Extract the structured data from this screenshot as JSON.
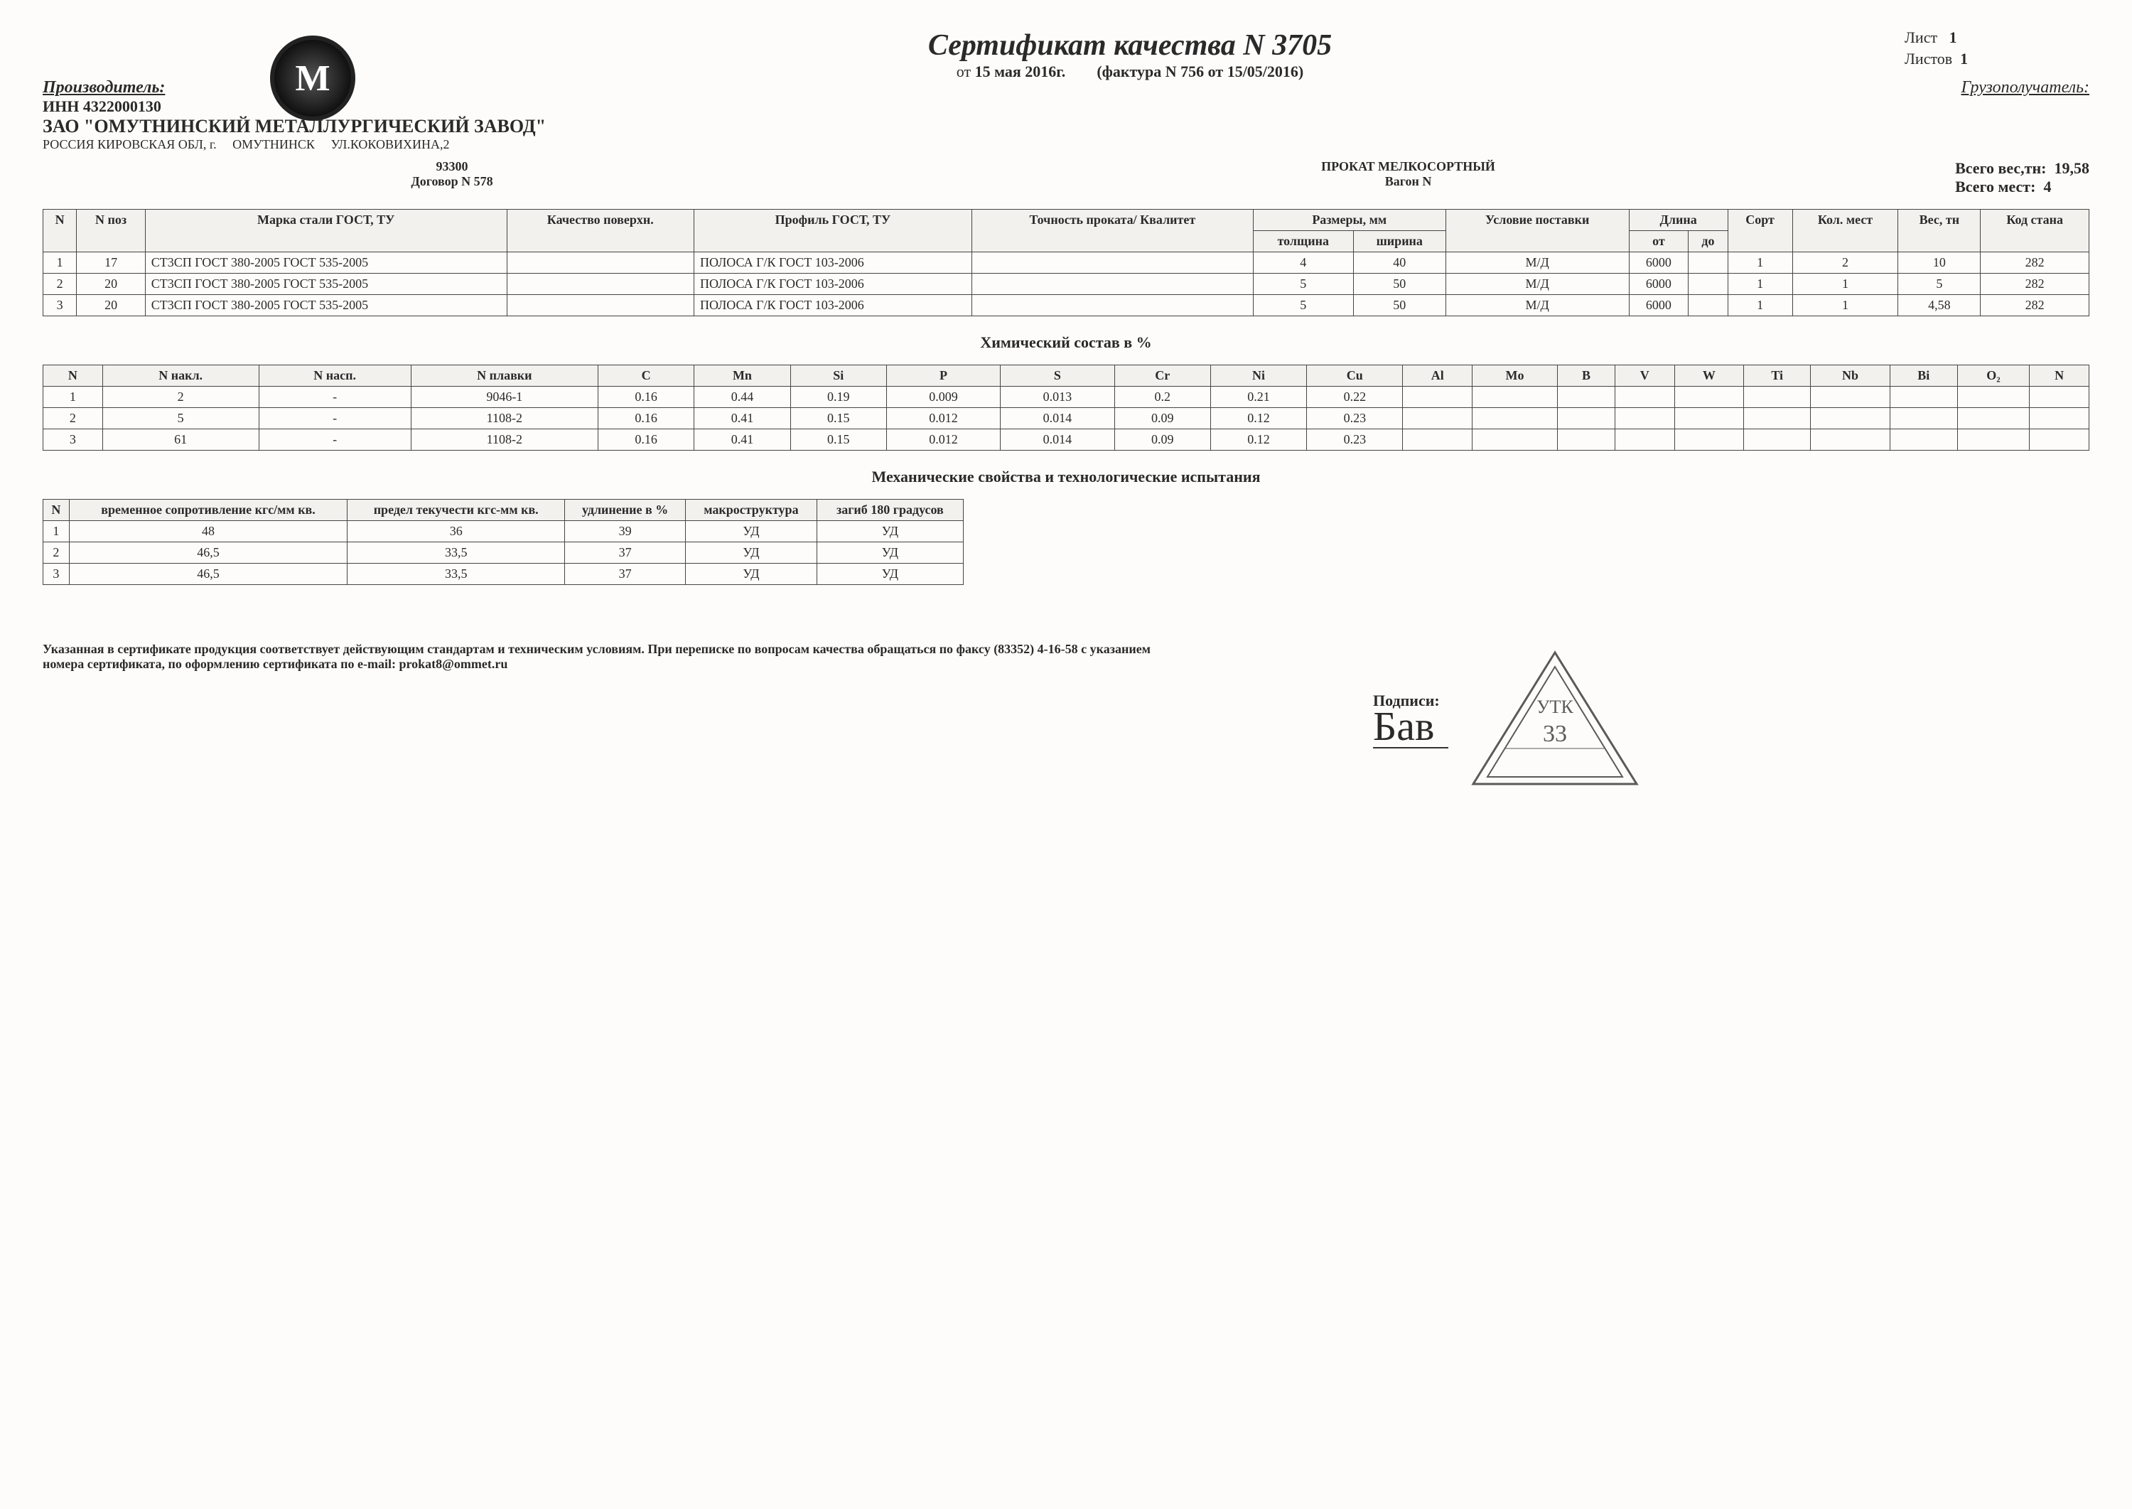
{
  "header": {
    "main_title": "Сертификат качества N 3705",
    "date_prefix": "от",
    "date": "15 мая 2016г.",
    "invoice": "(фактура N 756 от 15/05/2016)",
    "page_label": "Лист",
    "page_num": "1",
    "pages_label": "Листов",
    "pages_total": "1"
  },
  "producer": {
    "label": "Производитель:",
    "inn": "ИНН 4322000130",
    "company": "ЗАО \"ОМУТНИНСКИЙ МЕТАЛЛУРГИЧЕСКИЙ ЗАВОД\"",
    "address1": "РОССИЯ КИРОВСКАЯ ОБЛ, г.",
    "address2": "ОМУТНИНСК",
    "address3": "УЛ.КОКОВИХИНА,2",
    "zip": "93300",
    "logo_letter": "M"
  },
  "recipient_label": "Грузополучатель:",
  "contract": {
    "dogovor": "Договор N 578",
    "product": "ПРОКАТ МЕЛКОСОРТНЫЙ",
    "wagon": "Вагон N"
  },
  "totals": {
    "weight_label": "Всего вес,тн:",
    "weight": "19,58",
    "places_label": "Всего мест:",
    "places": "4"
  },
  "table1": {
    "headers": {
      "n": "N",
      "npoz": "N поз",
      "mark": "Марка стали ГОСТ, ТУ",
      "quality": "Качество поверхн.",
      "profile": "Профиль ГОСТ, ТУ",
      "accuracy": "Точность проката/ Квалитет",
      "dims": "Размеры, мм",
      "thick": "толщина",
      "width": "ширина",
      "delivery": "Условие поставки",
      "length": "Длина",
      "from": "от",
      "to": "до",
      "sort": "Сорт",
      "places": "Кол. мест",
      "weight": "Вес, тн",
      "mill": "Код стана"
    },
    "rows": [
      {
        "n": "1",
        "npoz": "17",
        "mark": "СТ3СП ГОСТ 380-2005 ГОСТ 535-2005",
        "quality": "",
        "profile": "ПОЛОСА Г/К ГОСТ 103-2006",
        "accuracy": "",
        "thick": "4",
        "width": "40",
        "delivery": "М/Д",
        "from": "6000",
        "to": "",
        "sort": "1",
        "places": "2",
        "weight": "10",
        "mill": "282"
      },
      {
        "n": "2",
        "npoz": "20",
        "mark": "СТ3СП ГОСТ 380-2005 ГОСТ 535-2005",
        "quality": "",
        "profile": "ПОЛОСА Г/К ГОСТ 103-2006",
        "accuracy": "",
        "thick": "5",
        "width": "50",
        "delivery": "М/Д",
        "from": "6000",
        "to": "",
        "sort": "1",
        "places": "1",
        "weight": "5",
        "mill": "282"
      },
      {
        "n": "3",
        "npoz": "20",
        "mark": "СТ3СП ГОСТ 380-2005 ГОСТ 535-2005",
        "quality": "",
        "profile": "ПОЛОСА Г/К ГОСТ 103-2006",
        "accuracy": "",
        "thick": "5",
        "width": "50",
        "delivery": "М/Д",
        "from": "6000",
        "to": "",
        "sort": "1",
        "places": "1",
        "weight": "4,58",
        "mill": "282"
      }
    ]
  },
  "table2": {
    "title": "Химический состав в %",
    "headers": [
      "N",
      "N накл.",
      "N насп.",
      "N плавки",
      "C",
      "Mn",
      "Si",
      "P",
      "S",
      "Cr",
      "Ni",
      "Cu",
      "Al",
      "Mo",
      "B",
      "V",
      "W",
      "Ti",
      "Nb",
      "Bi",
      "O₂",
      "N"
    ],
    "rows": [
      [
        "1",
        "2",
        "-",
        "9046-1",
        "0.16",
        "0.44",
        "0.19",
        "0.009",
        "0.013",
        "0.2",
        "0.21",
        "0.22",
        "",
        "",
        "",
        "",
        "",
        "",
        "",
        "",
        "",
        ""
      ],
      [
        "2",
        "5",
        "-",
        "1108-2",
        "0.16",
        "0.41",
        "0.15",
        "0.012",
        "0.014",
        "0.09",
        "0.12",
        "0.23",
        "",
        "",
        "",
        "",
        "",
        "",
        "",
        "",
        "",
        ""
      ],
      [
        "3",
        "61",
        "-",
        "1108-2",
        "0.16",
        "0.41",
        "0.15",
        "0.012",
        "0.014",
        "0.09",
        "0.12",
        "0.23",
        "",
        "",
        "",
        "",
        "",
        "",
        "",
        "",
        "",
        ""
      ]
    ]
  },
  "table3": {
    "title": "Механические свойства и технологические испытания",
    "headers": [
      "N",
      "временное сопротивление кгс/мм кв.",
      "предел текучести кгс-мм кв.",
      "удлинение в %",
      "макроструктура",
      "загиб 180 градусов"
    ],
    "rows": [
      [
        "1",
        "48",
        "36",
        "39",
        "УД",
        "УД"
      ],
      [
        "2",
        "46,5",
        "33,5",
        "37",
        "УД",
        "УД"
      ],
      [
        "3",
        "46,5",
        "33,5",
        "37",
        "УД",
        "УД"
      ]
    ]
  },
  "footer": {
    "disclaimer": "Указанная в сертификате продукция соответствует действующим стандартам и техническим условиям. При переписке по вопросам качества обращаться по факсу (83352) 4-16-58 с указанием номера сертификата, по оформлению сертификата по e-mail: prokat8@ommet.ru",
    "sign_label": "Подписи:",
    "signature": "Бав",
    "stamp_top": "УТК",
    "stamp_num": "33"
  }
}
